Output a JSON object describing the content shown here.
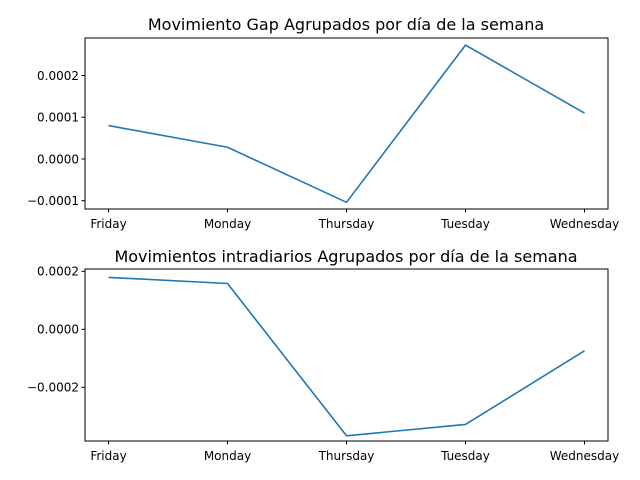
{
  "chart_data": [
    {
      "type": "line",
      "title": "Movimiento Gap Agrupados por día de la semana",
      "xlabel": "",
      "ylabel": "",
      "categories": [
        "Friday",
        "Monday",
        "Thursday",
        "Tuesday",
        "Wednesday"
      ],
      "series": [
        {
          "values": [
            8e-05,
            2.8e-05,
            -0.000104,
            0.000273,
            0.00011
          ],
          "color": "#1f77b4"
        }
      ],
      "ylim": [
        -0.00012,
        0.00029
      ],
      "yticks": [
        -0.0001,
        0.0,
        0.0001,
        0.0002
      ],
      "ytick_labels": [
        "−0.0001",
        "0.0000",
        "0.0001",
        "0.0002"
      ],
      "grid": false
    },
    {
      "type": "line",
      "title": "Movimientos intradiarios Agrupados por día de la semana",
      "xlabel": "",
      "ylabel": "",
      "categories": [
        "Friday",
        "Monday",
        "Thursday",
        "Tuesday",
        "Wednesday"
      ],
      "series": [
        {
          "values": [
            0.000179,
            0.000158,
            -0.000367,
            -0.000328,
            -7.4e-05
          ],
          "color": "#1f77b4"
        }
      ],
      "ylim": [
        -0.000385,
        0.000208
      ],
      "yticks": [
        -0.0002,
        0.0,
        0.0002
      ],
      "ytick_labels": [
        "−0.0002",
        "0.0000",
        "0.0002"
      ],
      "grid": false
    }
  ]
}
